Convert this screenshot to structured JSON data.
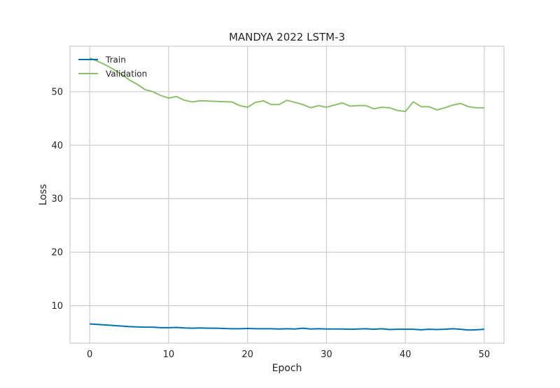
{
  "chart_data": {
    "type": "line",
    "title": "MANDYA 2022 LSTM-3",
    "xlabel": "Epoch",
    "ylabel": "Loss",
    "xlim": [
      -2.5,
      52.5
    ],
    "ylim": [
      3,
      58.5
    ],
    "xticks": [
      0,
      10,
      20,
      30,
      40,
      50
    ],
    "yticks": [
      10,
      20,
      30,
      40,
      50
    ],
    "grid": true,
    "legend_position": "top-left",
    "series": [
      {
        "name": "Train",
        "color": "#0072b2",
        "x": [
          0,
          1,
          2,
          3,
          4,
          5,
          6,
          7,
          8,
          9,
          10,
          11,
          12,
          13,
          14,
          15,
          16,
          17,
          18,
          19,
          20,
          21,
          22,
          23,
          24,
          25,
          26,
          27,
          28,
          29,
          30,
          31,
          32,
          33,
          34,
          35,
          36,
          37,
          38,
          39,
          40,
          41,
          42,
          43,
          44,
          45,
          46,
          47,
          48,
          49,
          50
        ],
        "values": [
          6.6,
          6.5,
          6.4,
          6.3,
          6.2,
          6.1,
          6.05,
          6.0,
          6.0,
          5.9,
          5.9,
          5.95,
          5.85,
          5.8,
          5.85,
          5.8,
          5.8,
          5.75,
          5.7,
          5.7,
          5.75,
          5.7,
          5.7,
          5.7,
          5.65,
          5.7,
          5.65,
          5.8,
          5.65,
          5.7,
          5.65,
          5.65,
          5.65,
          5.6,
          5.65,
          5.7,
          5.6,
          5.7,
          5.55,
          5.6,
          5.6,
          5.6,
          5.5,
          5.6,
          5.55,
          5.6,
          5.7,
          5.6,
          5.45,
          5.5,
          5.6
        ]
      },
      {
        "name": "Validation",
        "color": "#8fbf6e",
        "x": [
          0,
          1,
          2,
          3,
          4,
          5,
          6,
          7,
          8,
          9,
          10,
          11,
          12,
          13,
          14,
          15,
          16,
          17,
          18,
          19,
          20,
          21,
          22,
          23,
          24,
          25,
          26,
          27,
          28,
          29,
          30,
          31,
          32,
          33,
          34,
          35,
          36,
          37,
          38,
          39,
          40,
          41,
          42,
          43,
          44,
          45,
          46,
          47,
          48,
          49,
          50
        ],
        "values": [
          56.3,
          55.7,
          55.0,
          54.2,
          53.3,
          52.2,
          51.4,
          50.4,
          50.0,
          49.3,
          48.8,
          49.1,
          48.4,
          48.1,
          48.3,
          48.25,
          48.2,
          48.15,
          48.1,
          47.4,
          47.1,
          48.0,
          48.3,
          47.6,
          47.6,
          48.4,
          48.0,
          47.6,
          47.0,
          47.4,
          47.1,
          47.5,
          47.9,
          47.3,
          47.4,
          47.4,
          46.8,
          47.1,
          47.0,
          46.5,
          46.3,
          48.1,
          47.2,
          47.2,
          46.6,
          47.0,
          47.5,
          47.8,
          47.2,
          47.0,
          47.0
        ]
      }
    ]
  }
}
